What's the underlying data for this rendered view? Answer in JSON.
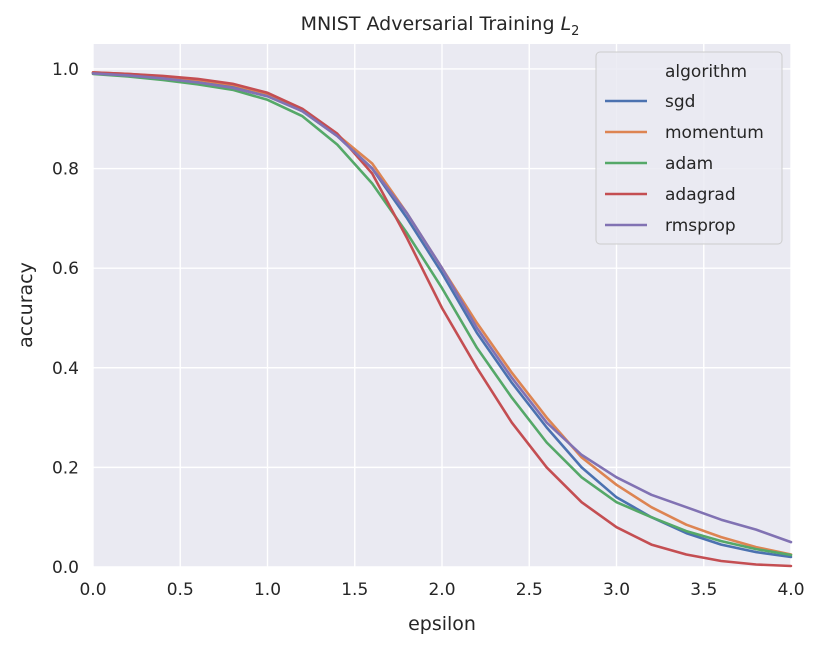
{
  "chart_data": {
    "type": "line",
    "title": "MNIST Adversarial Training ",
    "title_math": "L",
    "title_math_sub": "2",
    "xlabel": "epsilon",
    "ylabel": "accuracy",
    "xlim": [
      0,
      4
    ],
    "ylim": [
      0,
      1.05
    ],
    "xticks": [
      0.0,
      0.5,
      1.0,
      1.5,
      2.0,
      2.5,
      3.0,
      3.5,
      4.0
    ],
    "xtick_labels": [
      "0.0",
      "0.5",
      "1.0",
      "1.5",
      "2.0",
      "2.5",
      "3.0",
      "3.5",
      "4.0"
    ],
    "yticks": [
      0.0,
      0.2,
      0.4,
      0.6,
      0.8,
      1.0
    ],
    "ytick_labels": [
      "0.0",
      "0.2",
      "0.4",
      "0.6",
      "0.8",
      "1.0"
    ],
    "grid": true,
    "background": "#eaeaf2",
    "legend": {
      "title": "algorithm",
      "placement": "top-right"
    },
    "x": [
      0.0,
      0.2,
      0.4,
      0.6,
      0.8,
      1.0,
      1.2,
      1.4,
      1.6,
      1.8,
      2.0,
      2.2,
      2.4,
      2.6,
      2.8,
      3.0,
      3.2,
      3.4,
      3.6,
      3.8,
      4.0
    ],
    "series": [
      {
        "name": "sgd",
        "color": "#4c72b0",
        "values": [
          0.992,
          0.988,
          0.982,
          0.975,
          0.965,
          0.948,
          0.915,
          0.865,
          0.8,
          0.7,
          0.59,
          0.47,
          0.37,
          0.28,
          0.2,
          0.14,
          0.1,
          0.068,
          0.045,
          0.03,
          0.02
        ]
      },
      {
        "name": "momentum",
        "color": "#dd8452",
        "values": [
          0.993,
          0.99,
          0.985,
          0.978,
          0.968,
          0.95,
          0.918,
          0.868,
          0.81,
          0.71,
          0.6,
          0.49,
          0.39,
          0.3,
          0.22,
          0.165,
          0.12,
          0.085,
          0.06,
          0.04,
          0.025
        ]
      },
      {
        "name": "adam",
        "color": "#55a868",
        "values": [
          0.99,
          0.985,
          0.978,
          0.969,
          0.958,
          0.938,
          0.905,
          0.848,
          0.77,
          0.67,
          0.56,
          0.44,
          0.34,
          0.25,
          0.18,
          0.13,
          0.1,
          0.072,
          0.052,
          0.036,
          0.024
        ]
      },
      {
        "name": "adagrad",
        "color": "#c44e52",
        "values": [
          0.993,
          0.99,
          0.986,
          0.98,
          0.97,
          0.952,
          0.92,
          0.87,
          0.79,
          0.66,
          0.52,
          0.4,
          0.29,
          0.2,
          0.13,
          0.08,
          0.045,
          0.025,
          0.012,
          0.005,
          0.002
        ]
      },
      {
        "name": "rmsprop",
        "color": "#8172b3",
        "values": [
          0.991,
          0.987,
          0.981,
          0.973,
          0.962,
          0.945,
          0.915,
          0.865,
          0.8,
          0.71,
          0.6,
          0.48,
          0.38,
          0.29,
          0.225,
          0.18,
          0.145,
          0.12,
          0.095,
          0.075,
          0.05
        ]
      }
    ]
  }
}
